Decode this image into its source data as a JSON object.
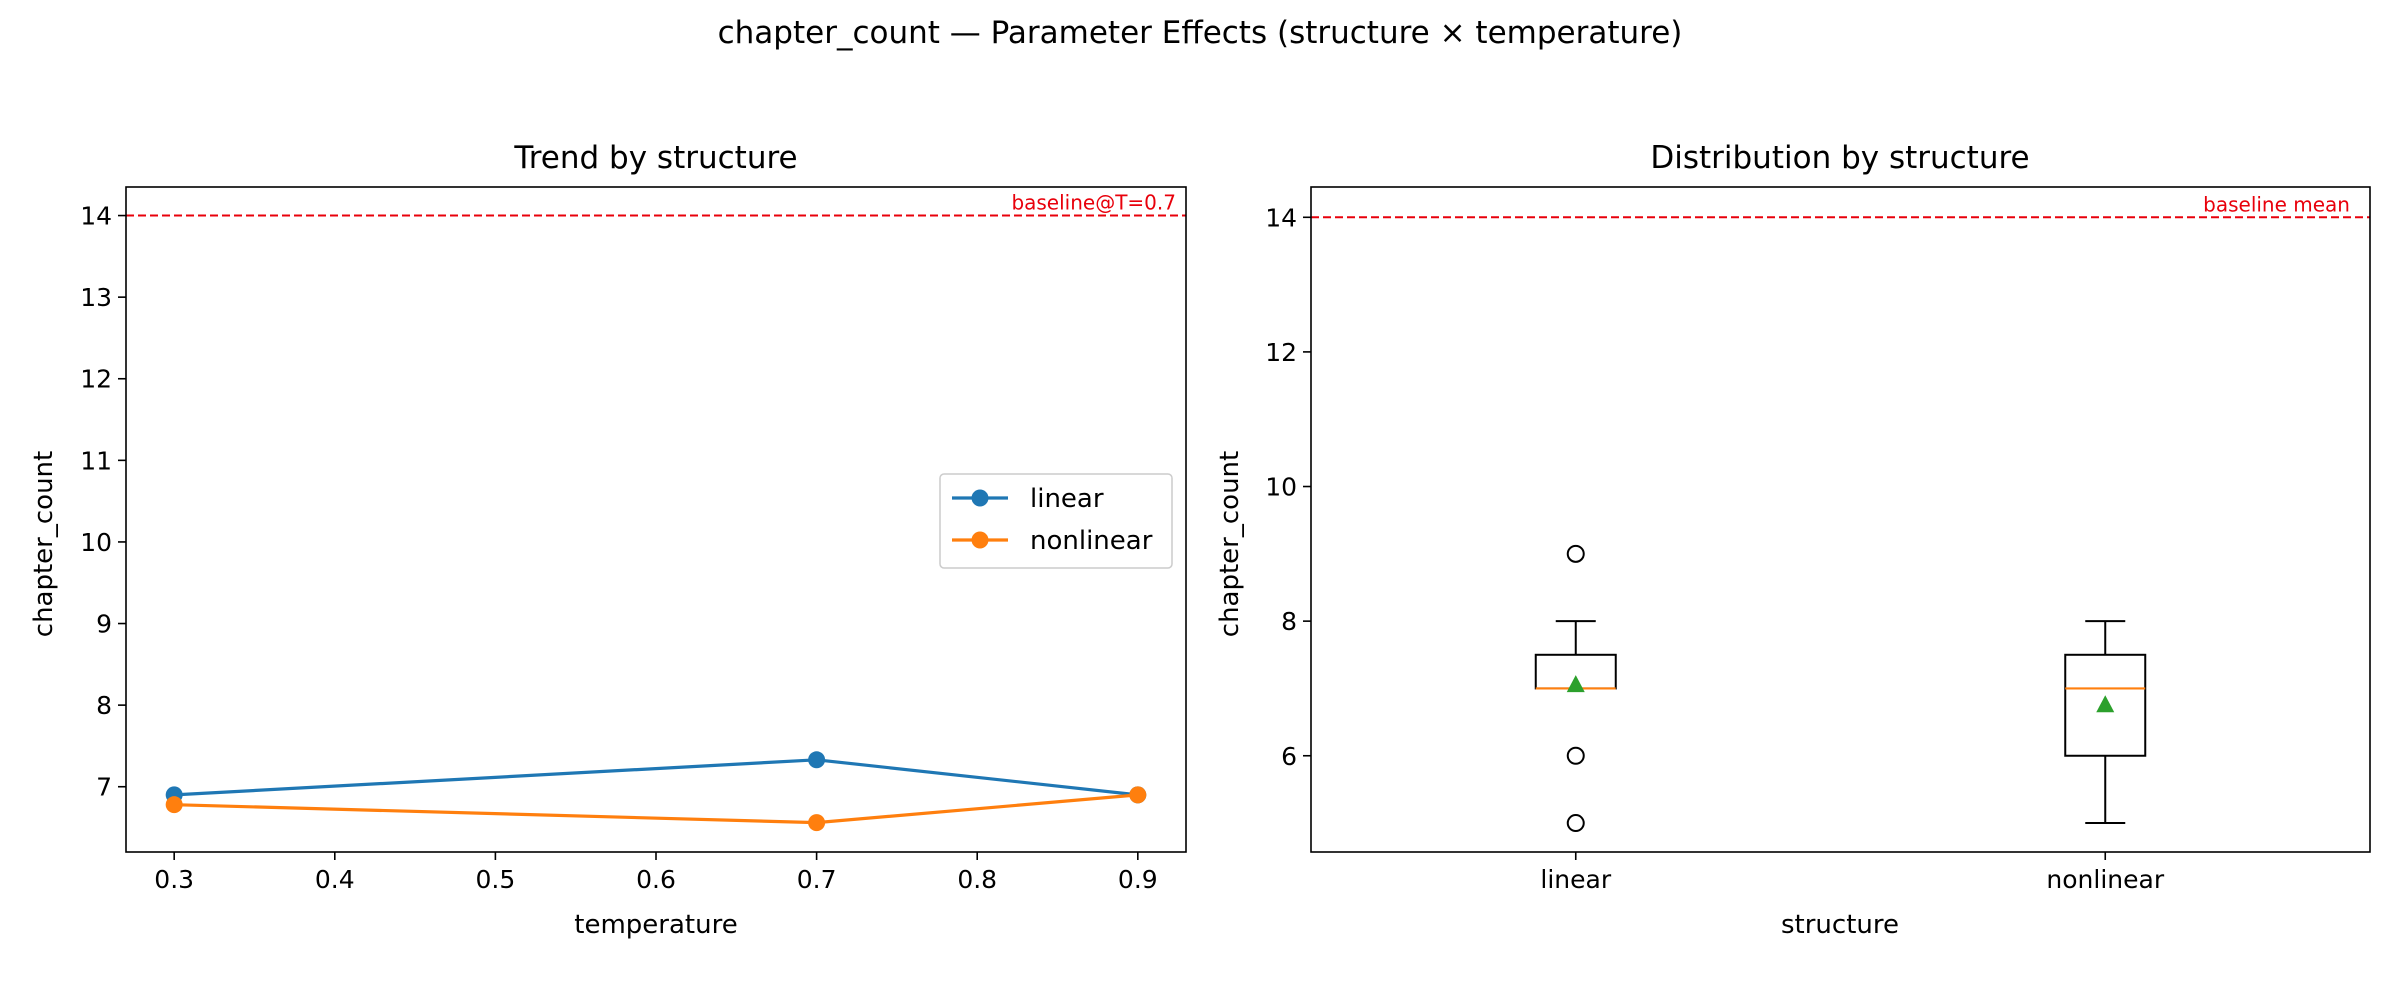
{
  "figure": {
    "suptitle": "chapter_count — Parameter Effects (structure × temperature)"
  },
  "chart_data": [
    {
      "type": "line",
      "title": "Trend by structure",
      "xlabel": "temperature",
      "ylabel": "chapter_count",
      "xlim": [
        0.27,
        0.93
      ],
      "ylim": [
        6.2,
        14.35
      ],
      "xticks": [
        0.3,
        0.4,
        0.5,
        0.6,
        0.7,
        0.8,
        0.9
      ],
      "yticks": [
        7,
        8,
        9,
        10,
        11,
        12,
        13,
        14
      ],
      "x": [
        0.3,
        0.7,
        0.9
      ],
      "series": [
        {
          "name": "linear",
          "values": [
            6.9,
            7.33,
            6.9
          ],
          "color": "#1f77b4"
        },
        {
          "name": "nonlinear",
          "values": [
            6.78,
            6.56,
            6.9
          ],
          "color": "#ff7f0e"
        }
      ],
      "baseline": {
        "value": 14,
        "label": "baseline@T=0.7",
        "color": "#e8000b"
      },
      "legend": {
        "position": "center-right"
      },
      "grid": false
    },
    {
      "type": "box",
      "title": "Distribution by structure",
      "xlabel": "structure",
      "ylabel": "chapter_count",
      "ylim": [
        4.57,
        14.45
      ],
      "yticks": [
        6,
        8,
        10,
        12,
        14
      ],
      "categories": [
        "linear",
        "nonlinear"
      ],
      "boxes": [
        {
          "category": "linear",
          "whisker_low": 7,
          "q1": 7,
          "median": 7,
          "q3": 7.5,
          "whisker_high": 8,
          "mean": 7.05,
          "outliers": [
            9,
            6,
            5
          ]
        },
        {
          "category": "nonlinear",
          "whisker_low": 5,
          "q1": 6,
          "median": 7,
          "q3": 7.5,
          "whisker_high": 8,
          "mean": 6.75,
          "outliers": []
        }
      ],
      "baseline": {
        "value": 14,
        "label": "baseline mean",
        "color": "#e8000b"
      },
      "median_color": "#ff7f0e",
      "mean_color": "#2ca02c",
      "grid": false
    }
  ]
}
